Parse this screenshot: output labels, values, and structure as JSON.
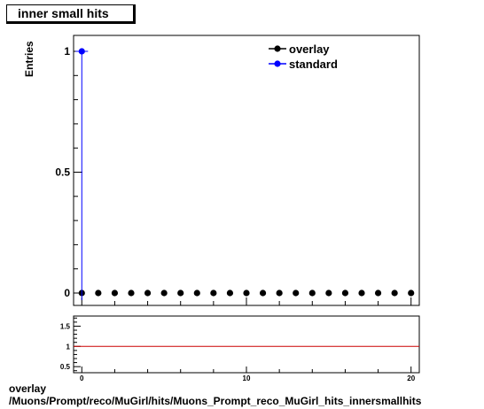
{
  "title": "inner small hits",
  "footer": {
    "line1": "overlay",
    "line2": "/Muons/Prompt/reco/MuGirl/hits/Muons_Prompt_reco_MuGirl_hits_innersmallhits"
  },
  "chart_data": [
    {
      "type": "scatter",
      "ylabel": "Entries",
      "xlim": [
        -0.5,
        20.5
      ],
      "ylim": [
        0,
        1.05
      ],
      "y_ticks": [
        0,
        0.5,
        1
      ],
      "y_tick_labels": [
        "0",
        "0.5",
        "1"
      ],
      "legend": {
        "placement": "top-right",
        "entries": [
          "overlay",
          "standard"
        ]
      },
      "series": [
        {
          "name": "overlay",
          "color": "#000000",
          "x": [
            0,
            1,
            2,
            3,
            4,
            5,
            6,
            7,
            8,
            9,
            10,
            11,
            12,
            13,
            14,
            15,
            16,
            17,
            18,
            19,
            20
          ],
          "y": [
            0,
            0,
            0,
            0,
            0,
            0,
            0,
            0,
            0,
            0,
            0,
            0,
            0,
            0,
            0,
            0,
            0,
            0,
            0,
            0,
            0
          ]
        },
        {
          "name": "standard",
          "color": "#0000ff",
          "x": [
            0
          ],
          "y": [
            1
          ]
        }
      ]
    },
    {
      "type": "line",
      "xlim": [
        -0.5,
        20.5
      ],
      "ylim": [
        0.35,
        1.75
      ],
      "y_ticks": [
        0.5,
        1,
        1.5
      ],
      "y_tick_labels": [
        "0.5",
        "1",
        "1.5"
      ],
      "x_ticks": [
        0,
        10,
        20
      ],
      "x_tick_labels": [
        "0",
        "10",
        "20"
      ],
      "reference_line": {
        "y": 1,
        "color": "#cc0000"
      }
    }
  ]
}
